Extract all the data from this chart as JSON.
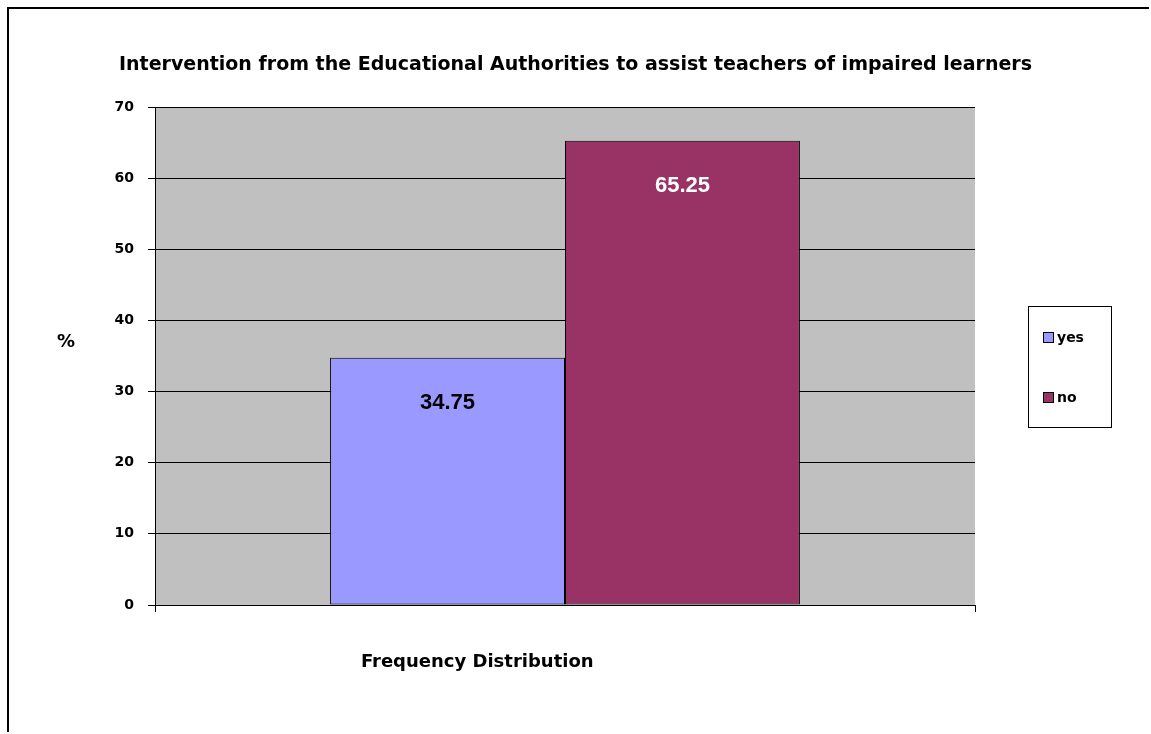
{
  "chart_data": {
    "type": "bar",
    "title": "Intervention from the Educational Authorities to assist teachers of impaired learners",
    "xlabel": "Frequency Distribution",
    "ylabel": "%",
    "categories": [
      null
    ],
    "series": [
      {
        "name": "yes",
        "color": "#9999ff",
        "values": [
          34.75
        ]
      },
      {
        "name": "no",
        "color": "#993366",
        "values": [
          65.25
        ]
      }
    ],
    "ylim": [
      0,
      70
    ],
    "yticks": [
      0,
      10,
      20,
      30,
      40,
      50,
      60,
      70
    ],
    "grid": "y",
    "legend": "right",
    "data_labels": true
  }
}
